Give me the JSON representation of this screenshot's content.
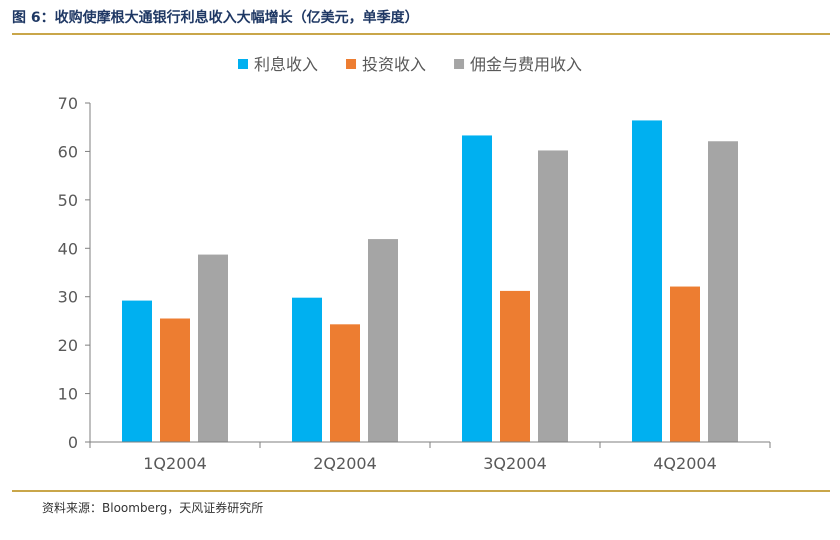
{
  "figure": {
    "title": "图 6：收购使摩根大通银行利息收入大幅增长（亿美元，单季度）",
    "source": "资料来源：Bloomberg，天风证券研究所"
  },
  "colors": {
    "rule": "#c9a64a",
    "title": "#1f3864",
    "axis": "#7f7f7f"
  },
  "chart_data": {
    "type": "bar",
    "categories": [
      "1Q2004",
      "2Q2004",
      "3Q2004",
      "4Q2004"
    ],
    "series": [
      {
        "name": "利息收入",
        "color": "#00b0f0",
        "values": [
          29.2,
          29.8,
          63.3,
          66.4
        ]
      },
      {
        "name": "投资收入",
        "color": "#ed7d31",
        "values": [
          25.5,
          24.3,
          31.2,
          32.1
        ]
      },
      {
        "name": "佣金与费用收入",
        "color": "#a5a5a5",
        "values": [
          38.7,
          41.9,
          60.2,
          62.1
        ]
      }
    ],
    "ylim": [
      0,
      70
    ],
    "yticks": [
      "0",
      "10",
      "20",
      "30",
      "40",
      "50",
      "60",
      "70"
    ],
    "legend_position": "top-center",
    "grid": false
  }
}
